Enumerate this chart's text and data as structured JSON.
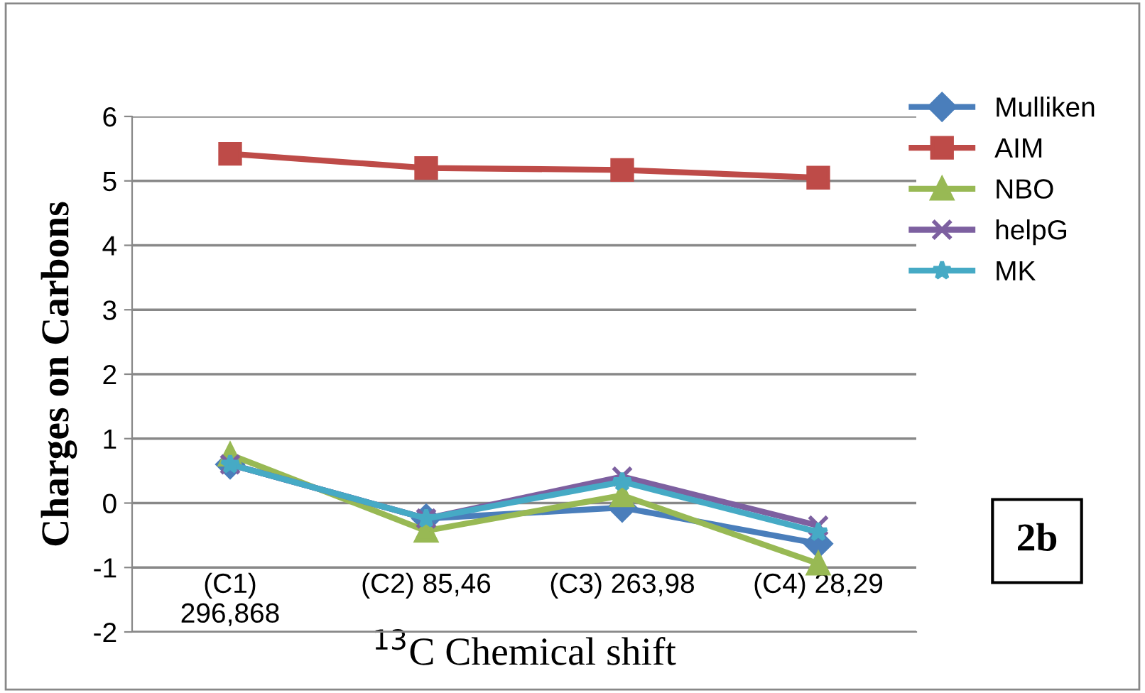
{
  "chart_data": {
    "type": "line",
    "xlabel": "$^{13}$C Chemical shift",
    "ylabel": "Charges on Carbons",
    "categories": [
      "(C1)\n296,868",
      "(C2) 85,46",
      "(C3) 263,98",
      "(C4) 28,29"
    ],
    "series": [
      {
        "name": "Mulliken",
        "color": "#4a7ebb",
        "marker": "diamond",
        "values": [
          0.6,
          -0.24,
          -0.07,
          -0.63
        ]
      },
      {
        "name": "AIM",
        "color": "#be4b48",
        "marker": "square",
        "values": [
          5.42,
          5.2,
          5.17,
          5.05
        ]
      },
      {
        "name": "NBO",
        "color": "#98b954",
        "marker": "triangle",
        "values": [
          0.75,
          -0.43,
          0.12,
          -0.94
        ]
      },
      {
        "name": "helpG",
        "color": "#7d60a0",
        "marker": "cross",
        "values": [
          0.6,
          -0.24,
          0.41,
          -0.35
        ]
      },
      {
        "name": "MK",
        "color": "#46aac5",
        "marker": "star",
        "values": [
          0.6,
          -0.24,
          0.33,
          -0.45
        ]
      }
    ],
    "ylim": [
      -2,
      6
    ],
    "yticks": [
      -2,
      -1,
      0,
      1,
      2,
      3,
      4,
      5,
      6
    ],
    "grid": "y",
    "legend": "top right",
    "annotations": [
      "2b"
    ]
  }
}
